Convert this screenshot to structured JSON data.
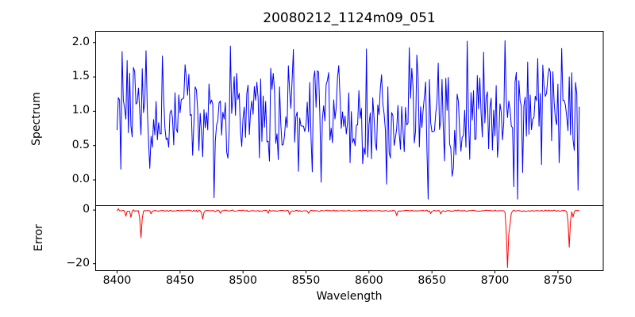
{
  "title": "20080212_1124m09_051",
  "xlabel": "Wavelength",
  "colors": {
    "spectrum_line": "#0000ff",
    "error_line": "#ff0000",
    "axis": "#000000",
    "background": "#ffffff"
  },
  "chart_data": {
    "type": "line",
    "title": "20080212_1124m09_051",
    "xlabel": "Wavelength",
    "xlim": [
      8383,
      8786
    ],
    "x_ticks": [
      8400,
      8450,
      8500,
      8550,
      8600,
      8650,
      8700,
      8750
    ],
    "x_start": 8400,
    "x_step": 1,
    "n_points": 368,
    "legend": "none",
    "grid": false,
    "spectrum": {
      "ylabel": "Spectrum",
      "ylim": [
        -0.375,
        2.165
      ],
      "y_tick_labels": [
        "0.0",
        "0.5",
        "1.0",
        "1.5",
        "2.0"
      ],
      "y_tick_values": [
        0.0,
        0.5,
        1.0,
        1.5,
        2.0
      ],
      "noise_mean": 0.92,
      "noise_sd": 0.43,
      "clamp": [
        -0.28,
        2.05
      ],
      "seed": 20080212,
      "anchors": [
        {
          "wl": 8401,
          "v": 1.2
        },
        {
          "wl": 8404,
          "v": 1.87
        },
        {
          "wl": 8420,
          "v": 1.62
        },
        {
          "wl": 8477,
          "v": -0.26
        },
        {
          "wl": 8479,
          "v": 0.8
        },
        {
          "wl": 8490,
          "v": 1.95
        },
        {
          "wl": 8540,
          "v": 1.9
        },
        {
          "wl": 8638,
          "v": 1.82
        },
        {
          "wl": 8708,
          "v": 2.03
        },
        {
          "wl": 8715,
          "v": -0.1
        },
        {
          "wl": 8766,
          "v": -0.15
        }
      ]
    },
    "error": {
      "ylabel": "Error",
      "ylim": [
        -22.6,
        1.65
      ],
      "y_tick_labels": [
        "0",
        "−20"
      ],
      "y_tick_values": [
        0,
        -20
      ],
      "baseline_mean": -0.25,
      "baseline_sd": 0.12,
      "start_sd": 0.45,
      "start_n": 12,
      "seed": 1124,
      "spikes": [
        {
          "wl": 8407,
          "depth": -1.6,
          "width": 0.7
        },
        {
          "wl": 8411,
          "depth": -2.2,
          "width": 0.7
        },
        {
          "wl": 8419,
          "depth": -10.0,
          "width": 0.9
        },
        {
          "wl": 8427,
          "depth": -1.2,
          "width": 0.6
        },
        {
          "wl": 8468,
          "depth": -3.2,
          "width": 0.8
        },
        {
          "wl": 8482,
          "depth": -1.0,
          "width": 0.6
        },
        {
          "wl": 8520,
          "depth": -0.8,
          "width": 0.6
        },
        {
          "wl": 8537,
          "depth": -1.4,
          "width": 0.7
        },
        {
          "wl": 8552,
          "depth": -1.0,
          "width": 0.6
        },
        {
          "wl": 8622,
          "depth": -1.8,
          "width": 0.7
        },
        {
          "wl": 8649,
          "depth": -1.0,
          "width": 0.6
        },
        {
          "wl": 8657,
          "depth": -1.0,
          "width": 0.6
        },
        {
          "wl": 8710,
          "depth": -21.2,
          "width": 1.0
        },
        {
          "wl": 8712,
          "depth": -4.5,
          "width": 0.8
        },
        {
          "wl": 8759,
          "depth": -13.7,
          "width": 0.9
        },
        {
          "wl": 8762,
          "depth": -2.3,
          "width": 0.7
        }
      ]
    }
  }
}
